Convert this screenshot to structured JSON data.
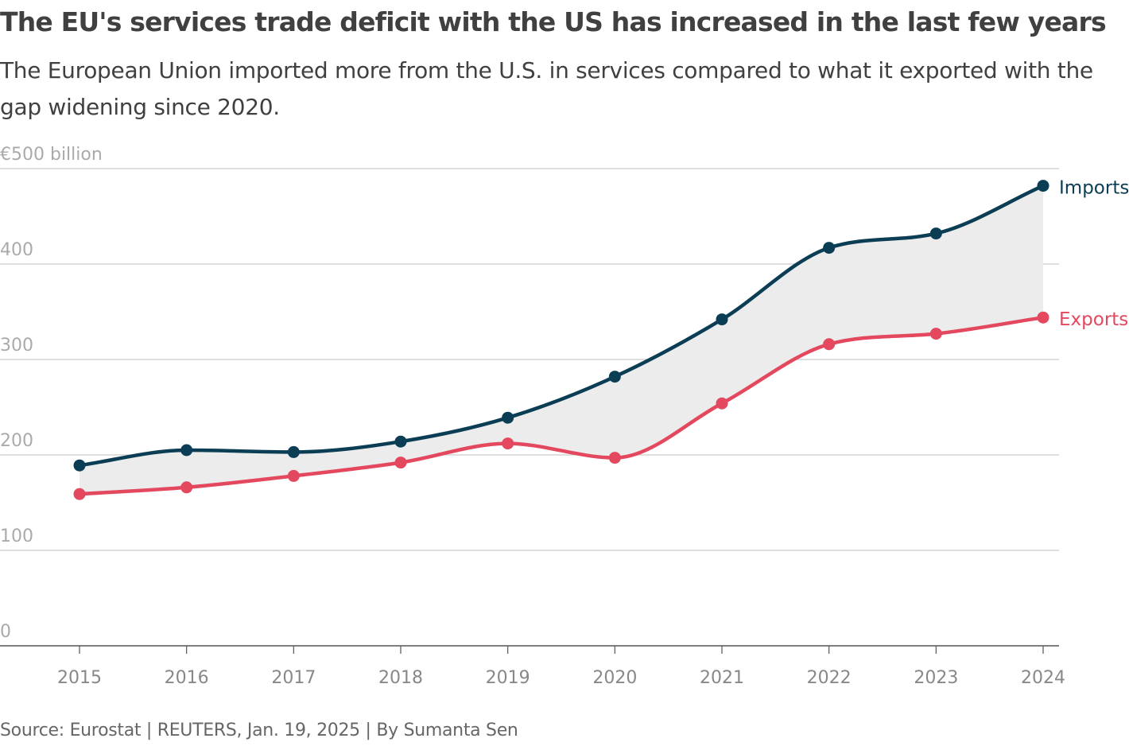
{
  "title": "The EU's services trade deficit with the US has increased in the last few years",
  "subtitle": "The European Union imported more from the U.S. in services compared to what it exported with the gap widening since 2020.",
  "source": "Source: Eurostat | REUTERS, Jan. 19, 2025 | By Sumanta Sen",
  "chart_data": {
    "type": "line",
    "title": "The EU's services trade deficit with the US has increased in the last few years",
    "ylabel": "€500 billion",
    "x": [
      2015,
      2016,
      2017,
      2018,
      2019,
      2020,
      2021,
      2022,
      2023,
      2024
    ],
    "x_tick_labels": [
      "2015",
      "2016",
      "2017",
      "2018",
      "2019",
      "2020",
      "2021",
      "2022",
      "2023",
      "2024"
    ],
    "y_tick_labels": [
      "0",
      "100",
      "200",
      "300",
      "400",
      "€500 billion"
    ],
    "y_ticks": [
      0,
      100,
      200,
      300,
      400,
      500
    ],
    "ylim": [
      0,
      500
    ],
    "grid": true,
    "legend": "direct labels at line ends",
    "fill_between": true,
    "series": [
      {
        "name": "Imports",
        "color": "#0b3d55",
        "values": [
          189,
          205,
          203,
          214,
          239,
          282,
          342,
          417,
          432,
          482
        ]
      },
      {
        "name": "Exports",
        "color": "#e4485e",
        "values": [
          159,
          166,
          178,
          192,
          212,
          197,
          254,
          316,
          327,
          344
        ]
      }
    ]
  }
}
